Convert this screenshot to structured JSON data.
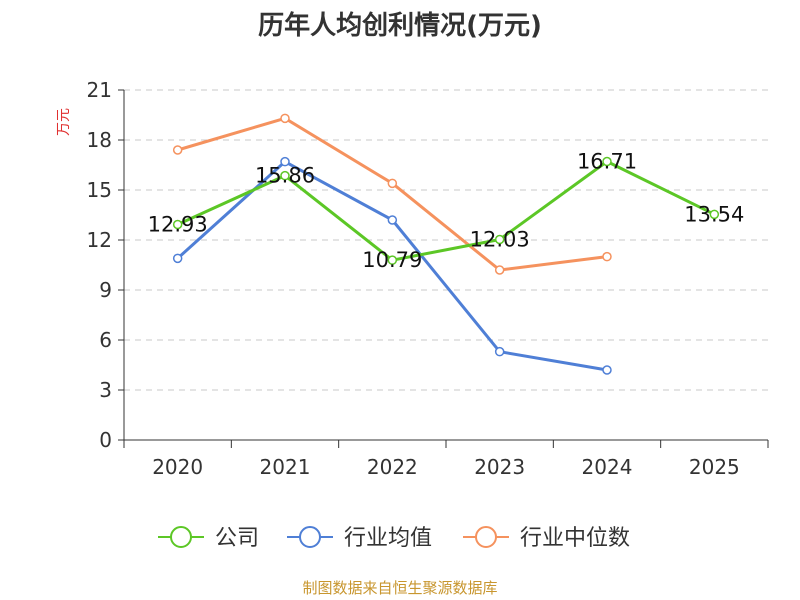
{
  "chart_data": {
    "type": "line",
    "title": "历年人均创利情况(万元)",
    "ylabel": "万元",
    "xlabel": "",
    "ylim": [
      0,
      21
    ],
    "yticks": [
      0,
      3,
      6,
      9,
      12,
      15,
      18,
      21
    ],
    "grid": true,
    "legend_position": "bottom",
    "categories": [
      "2020",
      "2021",
      "2022",
      "2023",
      "2024",
      "2025"
    ],
    "series": [
      {
        "name": "公司",
        "color": "#5cc726",
        "values": [
          12.93,
          15.86,
          10.79,
          12.03,
          16.71,
          13.54
        ],
        "labels": [
          "12.93",
          "15.86",
          "10.79",
          "12.03",
          "16.71",
          "13.54"
        ]
      },
      {
        "name": "行业均值",
        "color": "#4f7fd6",
        "values": [
          10.9,
          16.7,
          13.2,
          5.3,
          4.2,
          null
        ]
      },
      {
        "name": "行业中位数",
        "color": "#f5925e",
        "values": [
          17.4,
          19.3,
          15.4,
          10.2,
          11.0,
          null
        ]
      }
    ]
  },
  "source": "制图数据来自恒生聚源数据库"
}
